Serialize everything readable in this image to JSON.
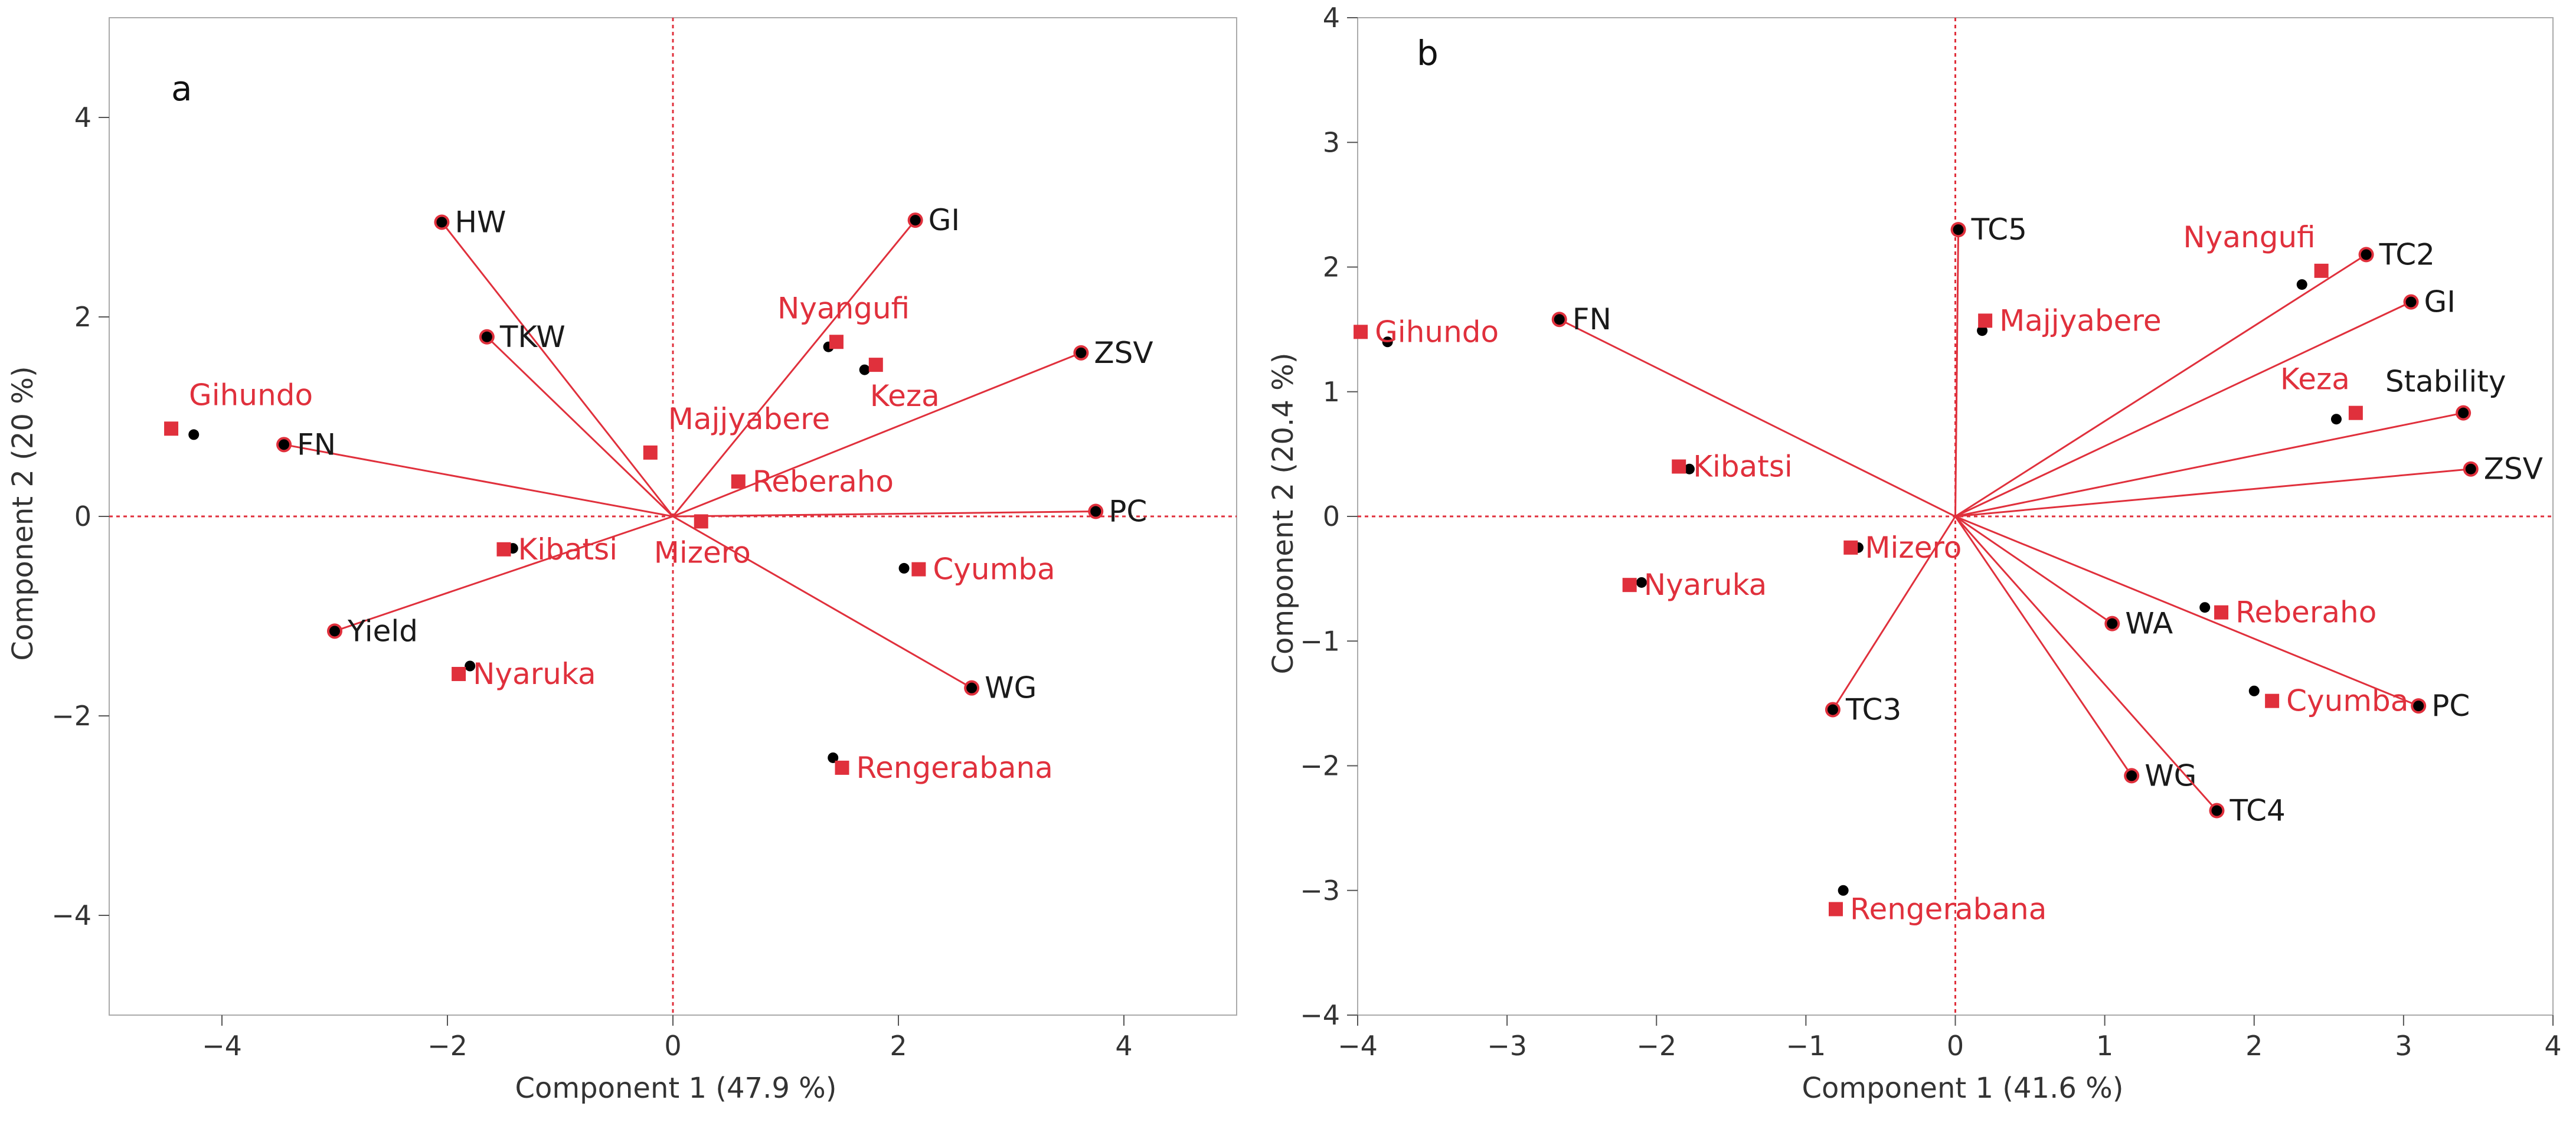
{
  "colors": {
    "accent": "#e0303c",
    "genotype": "#e0303c",
    "trait_text": "#1a1a1a",
    "point": "#000000",
    "axis": "#555555",
    "frame": "#aaaaaa"
  },
  "chart_data": [
    {
      "type": "scatter",
      "panel_label": "a",
      "title": "",
      "xlabel": "Component 1  (47.9 %)",
      "ylabel": "Component 2  (20 %)",
      "xlim": [
        -5,
        5
      ],
      "ylim": [
        -5,
        5
      ],
      "xticks": [
        -4,
        -2,
        0,
        2,
        4
      ],
      "yticks": [
        -4,
        -2,
        0,
        2,
        4
      ],
      "xticklabels": [
        "−4",
        "−2",
        "0",
        "2",
        "4"
      ],
      "yticklabels": [
        "−4",
        "−2",
        "0",
        "2",
        "4"
      ],
      "grid": false,
      "loadings": [
        {
          "label": "HW",
          "x": -2.05,
          "y": 2.95
        },
        {
          "label": "TKW",
          "x": -1.65,
          "y": 1.8
        },
        {
          "label": "FN",
          "x": -3.45,
          "y": 0.72
        },
        {
          "label": "Yield",
          "x": -3.0,
          "y": -1.15
        },
        {
          "label": "GI",
          "x": 2.15,
          "y": 2.97
        },
        {
          "label": "ZSV",
          "x": 3.62,
          "y": 1.64
        },
        {
          "label": "PC",
          "x": 3.75,
          "y": 0.05
        },
        {
          "label": "WG",
          "x": 2.65,
          "y": -1.72
        }
      ],
      "genotypes": [
        {
          "label": "Gihundo",
          "x": -4.45,
          "y": 0.88,
          "point": [
            -4.25,
            0.82
          ],
          "label_pos": "above"
        },
        {
          "label": "Kibatsi",
          "x": -1.5,
          "y": -0.33,
          "point": [
            -1.42,
            -0.32
          ],
          "label_pos": "right"
        },
        {
          "label": "Nyaruka",
          "x": -1.9,
          "y": -1.58,
          "point": [
            -1.8,
            -1.5
          ],
          "label_pos": "right"
        },
        {
          "label": "Majjyabere",
          "x": -0.2,
          "y": 0.64,
          "point": [
            -0.2,
            0.64
          ],
          "label_pos": "above"
        },
        {
          "label": "Mizero",
          "x": 0.25,
          "y": -0.05,
          "point": [
            0.25,
            -0.05
          ],
          "label_pos": "below"
        },
        {
          "label": "Reberaho",
          "x": 0.58,
          "y": 0.35,
          "point": [
            0.58,
            0.35
          ],
          "label_pos": "right"
        },
        {
          "label": "Nyangufi",
          "x": 1.45,
          "y": 1.75,
          "point": [
            1.38,
            1.7
          ],
          "label_pos": "above"
        },
        {
          "label": "Keza",
          "x": 1.8,
          "y": 1.52,
          "point": [
            1.7,
            1.47
          ],
          "label_pos": "below"
        },
        {
          "label": "Cyumba",
          "x": 2.18,
          "y": -0.53,
          "point": [
            2.05,
            -0.52
          ],
          "label_pos": "right"
        },
        {
          "label": "Rengerabana",
          "x": 1.5,
          "y": -2.52,
          "point": [
            1.42,
            -2.42
          ],
          "label_pos": "right"
        }
      ]
    },
    {
      "type": "scatter",
      "panel_label": "b",
      "title": "",
      "xlabel": "Component 1  (41.6 %)",
      "ylabel": "Component 2  (20.4 %)",
      "xlim": [
        -4,
        4
      ],
      "ylim": [
        -4,
        4
      ],
      "xticks": [
        -4,
        -3,
        -2,
        -1,
        0,
        1,
        2,
        3,
        4
      ],
      "yticks": [
        -4,
        -3,
        -2,
        -1,
        0,
        1,
        2,
        3,
        4
      ],
      "xticklabels": [
        "−4",
        "−3",
        "−2",
        "−1",
        "0",
        "1",
        "2",
        "3",
        "4"
      ],
      "yticklabels": [
        "−4",
        "−3",
        "−2",
        "−1",
        "0",
        "1",
        "2",
        "3",
        "4"
      ],
      "grid": false,
      "loadings": [
        {
          "label": "FN",
          "x": -2.65,
          "y": 1.58
        },
        {
          "label": "TC5",
          "x": 0.02,
          "y": 2.3
        },
        {
          "label": "TC2",
          "x": 2.75,
          "y": 2.1
        },
        {
          "label": "GI",
          "x": 3.05,
          "y": 1.72
        },
        {
          "label": "Stability",
          "x": 3.4,
          "y": 0.83
        },
        {
          "label": "ZSV",
          "x": 3.45,
          "y": 0.38
        },
        {
          "label": "TC3",
          "x": -0.82,
          "y": -1.55
        },
        {
          "label": "WA",
          "x": 1.05,
          "y": -0.86
        },
        {
          "label": "PC",
          "x": 3.1,
          "y": -1.52
        },
        {
          "label": "WG",
          "x": 1.18,
          "y": -2.08
        },
        {
          "label": "TC4",
          "x": 1.75,
          "y": -2.36
        }
      ],
      "genotypes": [
        {
          "label": "Gihundo",
          "x": -3.98,
          "y": 1.48,
          "point": [
            -3.8,
            1.4
          ],
          "label_pos": "right"
        },
        {
          "label": "Kibatsi",
          "x": -1.85,
          "y": 0.4,
          "point": [
            -1.78,
            0.38
          ],
          "label_pos": "right"
        },
        {
          "label": "Nyaruka",
          "x": -2.18,
          "y": -0.55,
          "point": [
            -2.1,
            -0.53
          ],
          "label_pos": "right"
        },
        {
          "label": "Majjyabere",
          "x": 0.2,
          "y": 1.57,
          "point": [
            0.18,
            1.49
          ],
          "label_pos": "right"
        },
        {
          "label": "Mizero",
          "x": -0.7,
          "y": -0.25,
          "point": [
            -0.65,
            -0.25
          ],
          "label_pos": "right"
        },
        {
          "label": "Nyangufi",
          "x": 2.45,
          "y": 1.97,
          "point": [
            2.32,
            1.86
          ],
          "label_pos": "above-left"
        },
        {
          "label": "Keza",
          "x": 2.68,
          "y": 0.83,
          "point": [
            2.55,
            0.78
          ],
          "label_pos": "above-left"
        },
        {
          "label": "Reberaho",
          "x": 1.78,
          "y": -0.77,
          "point": [
            1.67,
            -0.73
          ],
          "label_pos": "right"
        },
        {
          "label": "Cyumba",
          "x": 2.12,
          "y": -1.48,
          "point": [
            2.0,
            -1.4
          ],
          "label_pos": "right"
        },
        {
          "label": "Rengerabana",
          "x": -0.8,
          "y": -3.15,
          "point": [
            -0.75,
            -3.0
          ],
          "label_pos": "right"
        }
      ]
    }
  ]
}
